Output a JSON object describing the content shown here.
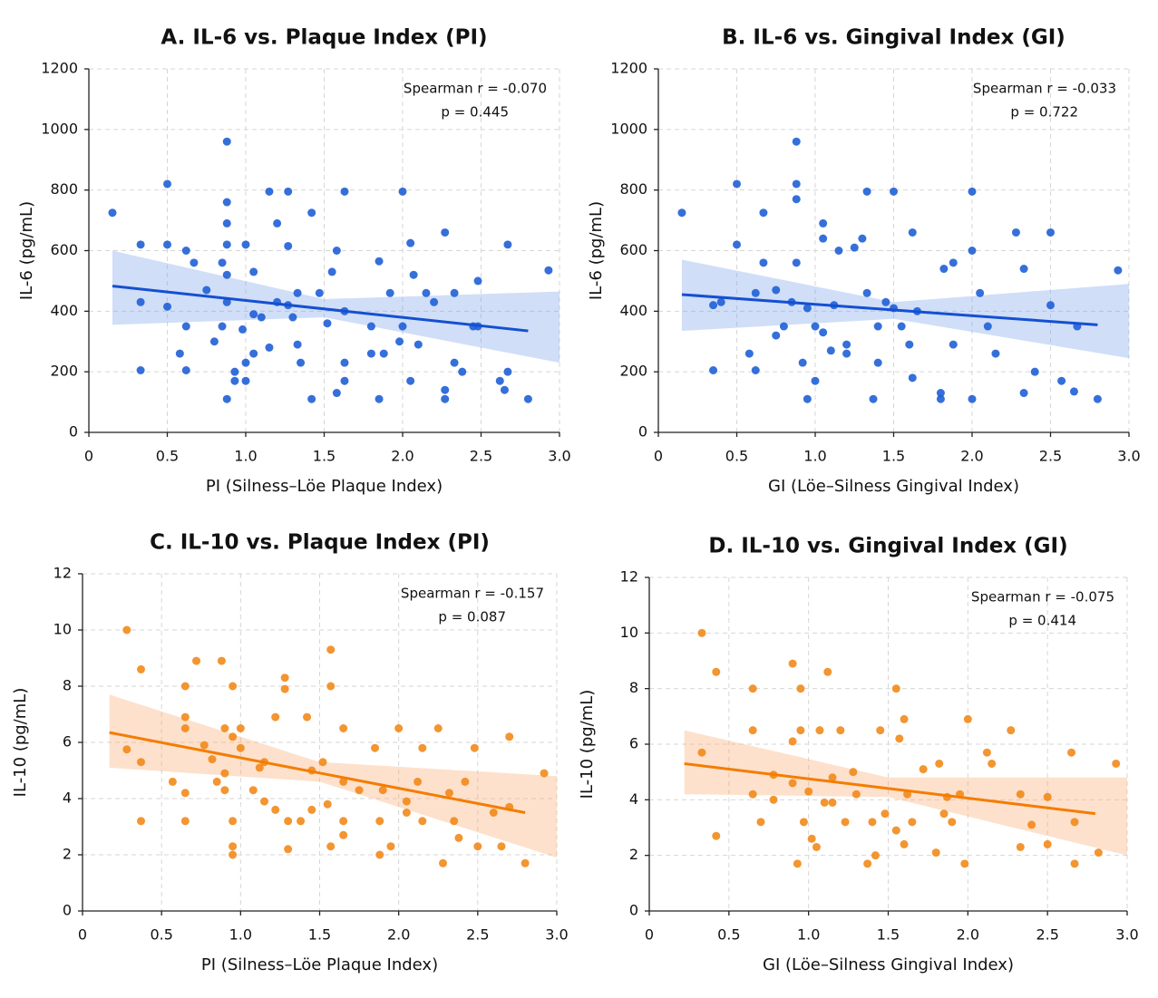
{
  "chart_data": [
    {
      "type": "scatter",
      "title": "A. IL-6 vs. Plaque Index (PI)",
      "xlabel": "PI (Silness–Löe Plaque Index)",
      "ylabel": "IL-6 (pg/mL)",
      "annotations": [
        "Spearman r = -0.070",
        "p = 0.445"
      ],
      "color": "#1f5fd6",
      "grid": true,
      "xlim": [
        0,
        3
      ],
      "xticks": [
        0,
        0.5,
        {
          "value": 1,
          "label": "1.0"
        },
        1.5,
        {
          "value": 2,
          "label": "2.0"
        },
        2.5,
        {
          "value": 3,
          "label": "3.0"
        }
      ],
      "ylim": [
        0,
        1200
      ],
      "yticks": [
        0,
        200,
        400,
        600,
        800,
        1000,
        1200
      ],
      "x": [
        0.15,
        0.33,
        0.33,
        0.33,
        0.5,
        0.5,
        0.5,
        0.58,
        0.62,
        0.62,
        0.62,
        0.67,
        0.75,
        0.8,
        0.85,
        0.85,
        0.88,
        0.88,
        0.88,
        0.88,
        0.88,
        0.88,
        0.88,
        0.93,
        0.93,
        0.98,
        1.0,
        1.0,
        1.0,
        1.05,
        1.05,
        1.05,
        1.1,
        1.15,
        1.15,
        1.2,
        1.2,
        1.27,
        1.27,
        1.27,
        1.33,
        1.33,
        1.35,
        1.42,
        1.42,
        1.47,
        1.52,
        1.55,
        1.58,
        1.58,
        1.63,
        1.63,
        1.63,
        1.63,
        1.8,
        1.8,
        1.85,
        1.85,
        1.88,
        1.92,
        1.98,
        2.0,
        2.0,
        2.05,
        2.05,
        2.07,
        2.1,
        2.15,
        2.2,
        2.27,
        2.27,
        2.27,
        2.33,
        2.33,
        2.38,
        2.48,
        2.48,
        2.62,
        2.65,
        2.67,
        2.67,
        2.8,
        2.93,
        2.45,
        1.3
      ],
      "values": [
        725,
        620,
        430,
        205,
        820,
        620,
        415,
        260,
        600,
        350,
        205,
        560,
        470,
        300,
        560,
        350,
        960,
        760,
        690,
        620,
        520,
        430,
        110,
        200,
        170,
        340,
        230,
        170,
        620,
        530,
        390,
        260,
        380,
        280,
        795,
        690,
        430,
        795,
        615,
        420,
        290,
        460,
        230,
        725,
        110,
        460,
        360,
        530,
        600,
        130,
        795,
        400,
        230,
        170,
        350,
        260,
        565,
        110,
        260,
        460,
        300,
        795,
        350,
        170,
        625,
        520,
        290,
        460,
        430,
        660,
        140,
        110,
        460,
        230,
        200,
        500,
        350,
        170,
        140,
        620,
        200,
        110,
        535,
        350,
        380
      ],
      "trend": {
        "x": [
          0.15,
          2.8
        ],
        "values": [
          483,
          335
        ]
      },
      "band": {
        "x": [
          0.15,
          1.5,
          3.0
        ],
        "lower": [
          355,
          380,
          230
        ],
        "upper": [
          600,
          440,
          465
        ]
      }
    },
    {
      "type": "scatter",
      "title": "B. IL-6 vs. Gingival Index (GI)",
      "xlabel": "GI (Löe–Silness Gingival Index)",
      "ylabel": "IL-6 (pg/mL)",
      "annotations": [
        "Spearman r = -0.033",
        "p = 0.722"
      ],
      "color": "#1f5fd6",
      "grid": true,
      "xlim": [
        0,
        3
      ],
      "xticks": [
        0,
        0.5,
        {
          "value": 1,
          "label": "1.0"
        },
        1.5,
        {
          "value": 2,
          "label": "2.0"
        },
        2.5,
        {
          "value": 3,
          "label": "3.0"
        }
      ],
      "ylim": [
        0,
        1200
      ],
      "yticks": [
        0,
        200,
        400,
        600,
        800,
        1000,
        1200
      ],
      "x": [
        0.15,
        0.35,
        0.35,
        0.5,
        0.5,
        0.58,
        0.62,
        0.62,
        0.67,
        0.67,
        0.75,
        0.75,
        0.8,
        0.85,
        0.88,
        0.88,
        0.88,
        0.88,
        0.92,
        0.95,
        0.95,
        1.0,
        1.0,
        1.05,
        1.05,
        1.05,
        1.1,
        1.12,
        1.15,
        1.2,
        1.2,
        1.25,
        1.3,
        1.33,
        1.33,
        1.37,
        1.4,
        1.4,
        1.45,
        1.5,
        1.5,
        1.55,
        1.62,
        1.62,
        1.65,
        1.8,
        1.8,
        1.82,
        1.88,
        1.88,
        2.0,
        2.0,
        2.0,
        2.05,
        2.1,
        2.15,
        2.28,
        2.33,
        2.33,
        2.4,
        2.5,
        2.5,
        2.57,
        2.65,
        2.67,
        2.8,
        2.93,
        0.4,
        1.6
      ],
      "values": [
        725,
        420,
        205,
        820,
        620,
        260,
        460,
        205,
        725,
        560,
        320,
        470,
        350,
        430,
        960,
        820,
        770,
        560,
        230,
        410,
        110,
        350,
        170,
        690,
        640,
        330,
        270,
        420,
        600,
        290,
        260,
        610,
        640,
        795,
        460,
        110,
        350,
        230,
        430,
        795,
        410,
        350,
        660,
        180,
        400,
        130,
        110,
        540,
        560,
        290,
        795,
        600,
        110,
        460,
        350,
        260,
        660,
        540,
        130,
        200,
        660,
        420,
        170,
        135,
        350,
        110,
        535,
        430,
        290
      ],
      "trend": {
        "x": [
          0.15,
          2.8
        ],
        "values": [
          455,
          355
        ]
      },
      "band": {
        "x": [
          0.15,
          1.5,
          3.0
        ],
        "lower": [
          335,
          375,
          245
        ],
        "upper": [
          570,
          430,
          490
        ]
      }
    },
    {
      "type": "scatter",
      "title": "C. IL-10 vs. Plaque Index (PI)",
      "xlabel": "PI (Silness–Löe Plaque Index)",
      "ylabel": "IL-10 (pg/mL)",
      "annotations": [
        "Spearman r = -0.157",
        "p = 0.087"
      ],
      "color": "#f28a1a",
      "grid": true,
      "xlim": [
        0,
        3
      ],
      "xticks": [
        0,
        0.5,
        {
          "value": 1,
          "label": "1.0"
        },
        1.5,
        {
          "value": 2,
          "label": "2.0"
        },
        2.5,
        {
          "value": 3,
          "label": "3.0"
        }
      ],
      "ylim": [
        0,
        12
      ],
      "yticks": [
        0,
        2,
        4,
        6,
        8,
        10,
        12
      ],
      "x": [
        0.28,
        0.28,
        0.37,
        0.37,
        0.37,
        0.57,
        0.65,
        0.65,
        0.65,
        0.65,
        0.65,
        0.72,
        0.77,
        0.82,
        0.85,
        0.88,
        0.9,
        0.9,
        0.9,
        0.95,
        0.95,
        0.95,
        0.95,
        0.95,
        1.0,
        1.0,
        1.08,
        1.12,
        1.15,
        1.15,
        1.22,
        1.22,
        1.28,
        1.28,
        1.3,
        1.3,
        1.38,
        1.42,
        1.45,
        1.45,
        1.52,
        1.55,
        1.57,
        1.57,
        1.57,
        1.65,
        1.65,
        1.65,
        1.65,
        1.75,
        1.85,
        1.88,
        1.88,
        1.9,
        1.95,
        2.0,
        2.05,
        2.05,
        2.12,
        2.15,
        2.15,
        2.25,
        2.28,
        2.32,
        2.35,
        2.38,
        2.42,
        2.48,
        2.5,
        2.6,
        2.65,
        2.7,
        2.7,
        2.8,
        2.92
      ],
      "values": [
        10,
        5.75,
        8.6,
        5.3,
        3.2,
        4.6,
        8,
        6.9,
        6.5,
        4.2,
        3.2,
        8.9,
        5.9,
        5.4,
        4.6,
        8.9,
        6.5,
        4.9,
        4.3,
        8,
        6.2,
        3.2,
        2.3,
        2,
        6.5,
        5.8,
        4.3,
        5.1,
        5.3,
        3.9,
        3.6,
        6.9,
        8.3,
        7.9,
        3.2,
        2.2,
        3.2,
        6.9,
        5,
        3.6,
        5.3,
        3.8,
        9.3,
        8,
        2.3,
        6.5,
        4.6,
        3.2,
        2.7,
        4.3,
        5.8,
        3.2,
        2,
        4.3,
        2.3,
        6.5,
        3.5,
        3.9,
        4.6,
        3.2,
        5.8,
        6.5,
        1.7,
        4.2,
        3.2,
        2.6,
        4.6,
        5.8,
        2.3,
        3.5,
        2.3,
        6.2,
        3.7,
        1.7,
        4.9
      ],
      "trend": {
        "x": [
          0.17,
          2.8
        ],
        "values": [
          6.35,
          3.5
        ]
      },
      "band": {
        "x": [
          0.17,
          1.5,
          3.0
        ],
        "lower": [
          5.1,
          4.6,
          1.9
        ],
        "upper": [
          7.7,
          5.3,
          4.8
        ]
      }
    },
    {
      "type": "scatter",
      "title": "D. IL-10 vs. Gingival Index (GI)",
      "xlabel": "GI (Löe–Silness Gingival Index)",
      "ylabel": "IL-10 (pg/mL)",
      "annotations": [
        "Spearman r = -0.075",
        "p = 0.414"
      ],
      "color": "#f28a1a",
      "grid": true,
      "xlim": [
        0,
        3
      ],
      "xticks": [
        0,
        0.5,
        {
          "value": 1,
          "label": "1.0"
        },
        1.5,
        {
          "value": 2,
          "label": "2.0"
        },
        2.5,
        {
          "value": 3,
          "label": "3.0"
        }
      ],
      "ylim": [
        0,
        12
      ],
      "yticks": [
        0,
        2,
        4,
        6,
        8,
        10,
        12
      ],
      "x": [
        0.33,
        0.33,
        0.42,
        0.42,
        0.65,
        0.65,
        0.65,
        0.7,
        0.78,
        0.78,
        0.9,
        0.9,
        0.9,
        0.93,
        0.95,
        0.95,
        0.97,
        1.0,
        1.02,
        1.05,
        1.07,
        1.1,
        1.12,
        1.15,
        1.15,
        1.2,
        1.23,
        1.28,
        1.3,
        1.37,
        1.4,
        1.42,
        1.45,
        1.48,
        1.55,
        1.55,
        1.57,
        1.6,
        1.6,
        1.62,
        1.65,
        1.72,
        1.8,
        1.82,
        1.85,
        1.87,
        1.9,
        1.95,
        1.98,
        2.0,
        2.12,
        2.15,
        2.27,
        2.33,
        2.33,
        2.4,
        2.5,
        2.5,
        2.65,
        2.67,
        2.67,
        2.82,
        2.93
      ],
      "values": [
        10,
        5.7,
        8.6,
        2.7,
        8,
        6.5,
        4.2,
        3.2,
        4.9,
        4,
        8.9,
        6.1,
        4.6,
        1.7,
        8,
        6.5,
        3.2,
        4.3,
        2.6,
        2.3,
        6.5,
        3.9,
        8.6,
        4.8,
        3.9,
        6.5,
        3.2,
        5,
        4.2,
        1.7,
        3.2,
        2,
        6.5,
        3.5,
        8,
        2.9,
        6.2,
        6.9,
        2.4,
        4.2,
        3.2,
        5.1,
        2.1,
        5.3,
        3.5,
        4.1,
        3.2,
        4.2,
        1.7,
        6.9,
        5.7,
        5.3,
        6.5,
        4.2,
        2.3,
        3.1,
        4.1,
        2.4,
        5.7,
        3.2,
        1.7,
        2.1,
        5.3
      ],
      "trend": {
        "x": [
          0.22,
          2.8
        ],
        "values": [
          5.3,
          3.5
        ]
      },
      "band": {
        "x": [
          0.22,
          1.5,
          3.0
        ],
        "lower": [
          4.2,
          4.1,
          2.0
        ],
        "upper": [
          6.5,
          4.8,
          4.8
        ]
      }
    }
  ]
}
